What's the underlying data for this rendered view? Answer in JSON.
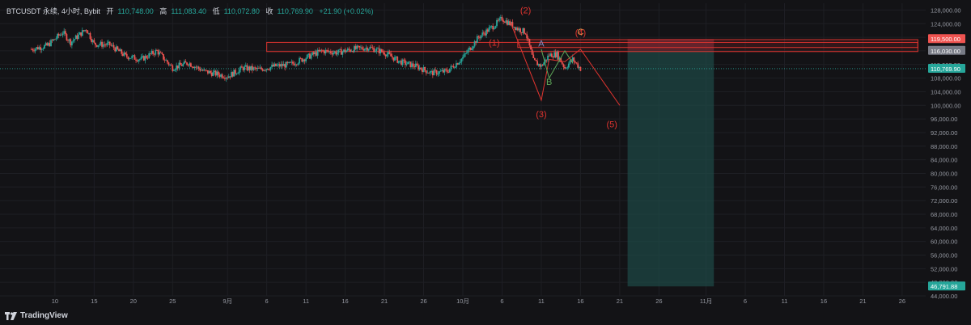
{
  "header": {
    "symbol": "BTCUSDT 永续, 4小时, Bybit",
    "open_label": "开",
    "open": "110,748.00",
    "high_label": "高",
    "high": "111,083.40",
    "low_label": "低",
    "low": "110,072.80",
    "close_label": "收",
    "close": "110,769.90",
    "change": "+21.90 (+0.02%)"
  },
  "branding": {
    "name": "TradingView"
  },
  "colors": {
    "background": "#131316",
    "grid": "#1e1f24",
    "up": "#26a69a",
    "down": "#ef5350",
    "text": "#9598a1",
    "pattern": "#e0342f",
    "wave_orange": "#e8954a",
    "wave_green": "#5faa5a",
    "target_zone": "#1e4a47",
    "stop_zone": "#5a2530"
  },
  "chart_data": {
    "type": "candlestick",
    "ylim": [
      44000,
      130000
    ],
    "yticks": [
      "44,000.00",
      "48,000.00",
      "52,000.00",
      "56,000.00",
      "60,000.00",
      "64,000.00",
      "68,000.00",
      "72,000.00",
      "76,000.00",
      "80,000.00",
      "84,000.00",
      "88,000.00",
      "92,000.00",
      "96,000.00",
      "100,000.00",
      "104,000.00",
      "108,000.00",
      "112,000.00",
      "116,000.00",
      "120,000.00",
      "124,000.00",
      "128,000.00"
    ],
    "xticks": [
      {
        "label": "10",
        "date": "2025-08-10"
      },
      {
        "label": "15",
        "date": "2025-08-15"
      },
      {
        "label": "20",
        "date": "2025-08-20"
      },
      {
        "label": "25",
        "date": "2025-08-25"
      },
      {
        "label": "9月",
        "date": "2025-09-01"
      },
      {
        "label": "6",
        "date": "2025-09-06"
      },
      {
        "label": "11",
        "date": "2025-09-11"
      },
      {
        "label": "16",
        "date": "2025-09-16"
      },
      {
        "label": "21",
        "date": "2025-09-21"
      },
      {
        "label": "26",
        "date": "2025-09-26"
      },
      {
        "label": "10月",
        "date": "2025-10-01"
      },
      {
        "label": "6",
        "date": "2025-10-06"
      },
      {
        "label": "11",
        "date": "2025-10-11"
      },
      {
        "label": "16",
        "date": "2025-10-16"
      },
      {
        "label": "21",
        "date": "2025-10-21"
      },
      {
        "label": "26",
        "date": "2025-10-26"
      },
      {
        "label": "11月",
        "date": "2025-11-01"
      },
      {
        "label": "6",
        "date": "2025-11-06"
      },
      {
        "label": "11",
        "date": "2025-11-11"
      },
      {
        "label": "16",
        "date": "2025-11-16"
      },
      {
        "label": "21",
        "date": "2025-11-21"
      },
      {
        "label": "26",
        "date": "2025-11-26"
      }
    ],
    "price_path": [
      [
        "2025-08-07",
        116500
      ],
      [
        "2025-08-09",
        117500
      ],
      [
        "2025-08-11",
        121500
      ],
      [
        "2025-08-12",
        118500
      ],
      [
        "2025-08-14",
        122500
      ],
      [
        "2025-08-15",
        118000
      ],
      [
        "2025-08-17",
        117800
      ],
      [
        "2025-08-19",
        114500
      ],
      [
        "2025-08-21",
        113500
      ],
      [
        "2025-08-23",
        116000
      ],
      [
        "2025-08-25",
        111000
      ],
      [
        "2025-08-27",
        112500
      ],
      [
        "2025-08-29",
        110000
      ],
      [
        "2025-09-01",
        108500
      ],
      [
        "2025-09-03",
        111000
      ],
      [
        "2025-09-05",
        110500
      ],
      [
        "2025-09-07",
        111500
      ],
      [
        "2025-09-09",
        112000
      ],
      [
        "2025-09-11",
        114000
      ],
      [
        "2025-09-13",
        116000
      ],
      [
        "2025-09-15",
        115500
      ],
      [
        "2025-09-17",
        116500
      ],
      [
        "2025-09-19",
        117000
      ],
      [
        "2025-09-21",
        115500
      ],
      [
        "2025-09-23",
        112800
      ],
      [
        "2025-09-25",
        111500
      ],
      [
        "2025-09-27",
        109500
      ],
      [
        "2025-09-29",
        110000
      ],
      [
        "2025-10-01",
        114000
      ],
      [
        "2025-10-03",
        120000
      ],
      [
        "2025-10-05",
        123500
      ],
      [
        "2025-10-06",
        125500
      ],
      [
        "2025-10-08",
        122500
      ],
      [
        "2025-10-09",
        121500
      ],
      [
        "2025-10-10",
        113000
      ],
      [
        "2025-10-11",
        111500
      ],
      [
        "2025-10-12",
        114800
      ],
      [
        "2025-10-13",
        115000
      ],
      [
        "2025-10-14",
        111000
      ],
      [
        "2025-10-15",
        113500
      ],
      [
        "2025-10-16",
        110769.9
      ]
    ],
    "last_close": 110769.9,
    "price_labels": [
      {
        "value": "119,500.00",
        "color": "#ef5350"
      },
      {
        "value": "116,030.00",
        "color": "#787b86"
      },
      {
        "value": "110,769.90",
        "color": "#26a69a"
      },
      {
        "value": "46,791.88",
        "color": "#26a69a"
      }
    ],
    "zones": [
      {
        "name": "resistance-box-1",
        "from": "2025-09-06",
        "to": "2025-11-28",
        "low": 115800,
        "high": 118500
      },
      {
        "name": "resistance-box-2",
        "from": "2025-10-08",
        "to": "2025-11-28",
        "low": 117000,
        "high": 119300
      }
    ],
    "position": {
      "entry": 116030,
      "stop": 119500,
      "target": 46791.88,
      "from": "2025-10-22",
      "to": "2025-11-02"
    },
    "wave_path": [
      [
        "2025-10-07",
        124800
      ],
      [
        "2025-10-11",
        101500
      ],
      [
        "2025-10-12",
        113500
      ],
      [
        "2025-10-14",
        112800
      ],
      [
        "2025-10-16",
        116500
      ],
      [
        "2025-10-21",
        100000
      ]
    ],
    "inner_wave": [
      [
        "2025-10-11",
        116500
      ],
      [
        "2025-10-12",
        108000
      ],
      [
        "2025-10-14",
        116000
      ],
      [
        "2025-10-15",
        112500
      ]
    ],
    "wave_labels": [
      {
        "text": "(1)",
        "date": "2025-10-05",
        "price": 117500,
        "color": "#e0342f"
      },
      {
        "text": "(2)",
        "date": "2025-10-09",
        "price": 127000,
        "color": "#e0342f"
      },
      {
        "text": "(3)",
        "date": "2025-10-11",
        "price": 96500,
        "color": "#e0342f"
      },
      {
        "text": "(4)",
        "date": "2025-10-16",
        "price": 120500,
        "color": "#e0342f"
      },
      {
        "text": "(5)",
        "date": "2025-10-20",
        "price": 93500,
        "color": "#e0342f"
      },
      {
        "text": "C",
        "date": "2025-10-16",
        "price": 120700,
        "color": "#e8954a"
      },
      {
        "text": "B",
        "date": "2025-10-12",
        "price": 106000,
        "color": "#5faa5a"
      },
      {
        "text": "A",
        "date": "2025-10-11",
        "price": 117300,
        "color": "#7a8cc4"
      }
    ]
  }
}
